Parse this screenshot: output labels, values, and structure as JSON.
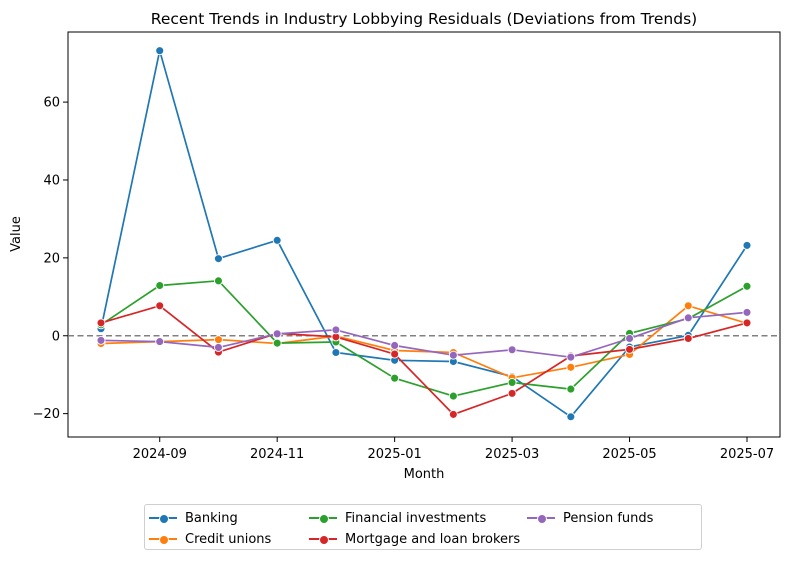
{
  "chart_data": {
    "type": "line",
    "title": "Recent Trends in Industry Lobbying Residuals (Deviations from Trends)",
    "xlabel": "Month",
    "ylabel": "Value",
    "x": [
      "2024-08",
      "2024-09",
      "2024-10",
      "2024-11",
      "2024-12",
      "2025-01",
      "2025-02",
      "2025-03",
      "2025-04",
      "2025-05",
      "2025-06",
      "2025-07"
    ],
    "x_tick_labels": [
      "2024-09",
      "2024-11",
      "2025-01",
      "2025-03",
      "2025-05",
      "2025-07"
    ],
    "y_ticks": [
      -20,
      0,
      20,
      40,
      60
    ],
    "ylim": [
      -26,
      78
    ],
    "reference_line": {
      "y": 0,
      "style": "dashed",
      "color": "#808080"
    },
    "legend_placement": "bottom-center (below plot)",
    "grid": false,
    "series": [
      {
        "name": "Banking",
        "color": "#1f77b4",
        "values": [
          1.8,
          73.2,
          19.8,
          24.5,
          -4.3,
          -6.3,
          -6.6,
          -10.5,
          -20.8,
          -2.9,
          0.1,
          23.2
        ]
      },
      {
        "name": "Credit unions",
        "color": "#ff7f0e",
        "values": [
          -2.0,
          -1.5,
          -1.0,
          -2.0,
          -0.1,
          -3.8,
          -4.3,
          -10.8,
          -8.1,
          -4.8,
          7.7,
          3.2
        ]
      },
      {
        "name": "Financial investments",
        "color": "#2ca02c",
        "values": [
          2.8,
          12.9,
          14.1,
          -1.9,
          -1.6,
          -10.9,
          -15.5,
          -12.0,
          -13.7,
          0.6,
          4.4,
          12.7
        ]
      },
      {
        "name": "Mortgage and loan brokers",
        "color": "#d62728",
        "values": [
          3.3,
          7.7,
          -4.2,
          0.6,
          -0.3,
          -4.7,
          -20.2,
          -14.8,
          -5.2,
          -3.5,
          -0.7,
          3.3
        ]
      },
      {
        "name": "Pension funds",
        "color": "#9467bd",
        "values": [
          -1.2,
          -1.5,
          -3.0,
          0.5,
          1.5,
          -2.5,
          -5.0,
          -3.6,
          -5.5,
          -0.7,
          4.6,
          6.0
        ]
      }
    ]
  }
}
